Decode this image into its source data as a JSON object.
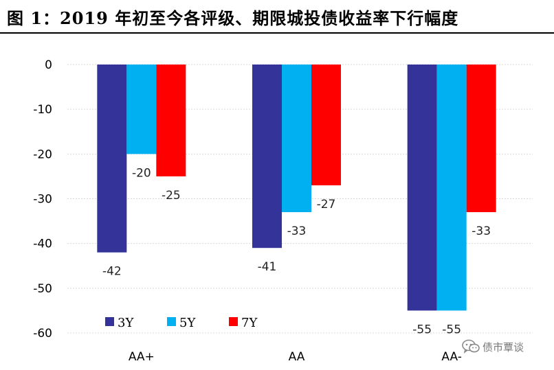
{
  "figure": {
    "title": "图 1：2019 年初至今各评级、期限城投债收益率下行幅度"
  },
  "colors": {
    "3Y": "#333399",
    "5Y": "#00B0F0",
    "7Y": "#FF0000"
  },
  "watermark": {
    "icon": "wechat-icon",
    "text": "债市覃谈"
  },
  "chart_data": {
    "type": "bar",
    "title": "",
    "xlabel": "",
    "ylabel": "",
    "categories": [
      "AA+",
      "AA",
      "AA-"
    ],
    "series": [
      {
        "name": "3Y",
        "values": [
          -42,
          -41,
          -55
        ]
      },
      {
        "name": "5Y",
        "values": [
          -20,
          -33,
          -55
        ]
      },
      {
        "name": "7Y",
        "values": [
          -25,
          -27,
          -33
        ]
      }
    ],
    "ylim": [
      -60,
      0
    ],
    "yticks": [
      0,
      -10,
      -20,
      -30,
      -40,
      -50,
      -60
    ],
    "grid": true,
    "legend": "bottom-left",
    "data_labels": true
  }
}
